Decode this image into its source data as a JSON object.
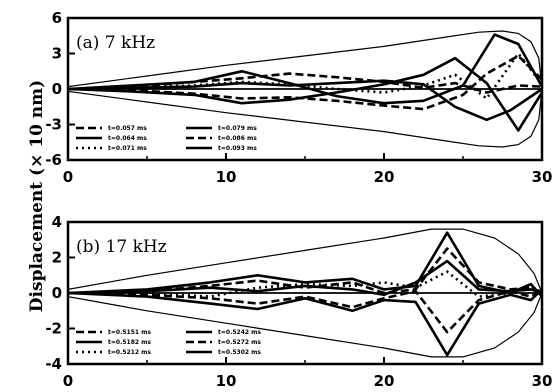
{
  "figure": {
    "ylabel": "Displacement (× 10 nm)"
  },
  "chart_data": [
    {
      "type": "line",
      "panel_label": "(a)  7 kHz",
      "xlim": [
        0,
        30
      ],
      "ylim": [
        -6,
        6
      ],
      "x_ticks": [
        0,
        10,
        20,
        30
      ],
      "y_ticks": [
        -6,
        -3,
        0,
        3,
        6
      ],
      "x_tick_labels": [
        "0",
        "10",
        "20",
        "30"
      ],
      "y_tick_labels": [
        "-6",
        "-3",
        "0",
        "3",
        "6"
      ],
      "grid": false,
      "legend_position": "bottom-left",
      "legend": [
        "t=0.057 ms",
        "t=0.064 ms",
        "t=0.071 ms",
        "t=0.079 ms",
        "t=0.086 ms",
        "t=0.093 ms"
      ],
      "envelope": {
        "x": [
          0,
          5,
          10,
          15,
          20,
          24,
          26,
          27.5,
          28.5,
          29.3,
          29.8,
          30
        ],
        "upper": [
          0.2,
          1.1,
          2.0,
          2.8,
          3.6,
          4.4,
          4.8,
          4.9,
          4.7,
          4.0,
          2.6,
          0
        ],
        "lower": [
          -0.2,
          -1.1,
          -2.0,
          -2.8,
          -3.6,
          -4.4,
          -4.8,
          -4.9,
          -4.7,
          -4.0,
          -2.6,
          0
        ]
      },
      "series": [
        {
          "dash": "solid",
          "x": [
            0,
            4,
            8,
            11,
            14,
            17,
            20,
            22.5,
            25,
            27,
            28.5,
            30
          ],
          "y": [
            0,
            0.3,
            0.6,
            1.5,
            0.5,
            -0.6,
            -1.2,
            -1.0,
            0.3,
            4.6,
            3.8,
            0.2
          ]
        },
        {
          "dash": "solid",
          "x": [
            0,
            4,
            8,
            11,
            14,
            17,
            20,
            22.5,
            24.5,
            26.5,
            28.5,
            30
          ],
          "y": [
            0,
            -0.2,
            -0.5,
            -1.2,
            -0.9,
            -0.3,
            0.4,
            1.2,
            2.6,
            0.5,
            -3.5,
            -0.3
          ]
        },
        {
          "dash": "solid",
          "x": [
            0,
            4,
            8,
            11,
            14,
            17,
            20,
            22.5,
            24.5,
            26.5,
            28,
            30
          ],
          "y": [
            0,
            0.1,
            0.2,
            0.5,
            0.3,
            0.5,
            0.7,
            0.4,
            -1.5,
            -2.6,
            -1.8,
            0
          ]
        },
        {
          "dash": "dash",
          "x": [
            0,
            4,
            8,
            11,
            14,
            17,
            20,
            22.5,
            25,
            26.5,
            28.5,
            30
          ],
          "y": [
            0,
            -0.1,
            -0.4,
            -0.8,
            -0.7,
            -1.0,
            -1.4,
            -1.7,
            -0.5,
            1.3,
            2.8,
            0.8
          ]
        },
        {
          "dash": "dash",
          "x": [
            0,
            4,
            8,
            11,
            14,
            17,
            20,
            22.5,
            24.5,
            26.5,
            28.5,
            30
          ],
          "y": [
            0,
            0.2,
            0.6,
            0.9,
            1.3,
            1.0,
            0.6,
            0.1,
            0.5,
            -0.3,
            0.3,
            0.2
          ]
        },
        {
          "dash": "dot",
          "x": [
            0,
            4,
            8,
            11,
            14,
            17,
            20,
            22.5,
            24.5,
            26.5,
            28.5,
            30
          ],
          "y": [
            0,
            0.1,
            0.3,
            0.6,
            0.4,
            0.0,
            -0.3,
            0.3,
            1.2,
            -0.8,
            3.0,
            0.4
          ]
        }
      ]
    },
    {
      "type": "line",
      "panel_label": "(b)  17 kHz",
      "xlim": [
        0,
        30
      ],
      "ylim": [
        -4,
        4
      ],
      "x_ticks": [
        0,
        10,
        20,
        30
      ],
      "y_ticks": [
        -4,
        -2,
        0,
        2,
        4
      ],
      "x_tick_labels": [
        "0",
        "10",
        "20",
        "30"
      ],
      "y_tick_labels": [
        "-4",
        "-2",
        "0",
        "2",
        "4"
      ],
      "grid": false,
      "legend_position": "bottom-left",
      "legend": [
        "t=0.5151 ms",
        "t=0.5182 ms",
        "t=0.5212 ms",
        "t=0.5242 ms",
        "t=0.5272 ms",
        "t=0.5302 ms"
      ],
      "envelope": {
        "x": [
          0,
          5,
          10,
          15,
          20,
          23,
          25,
          27,
          28.5,
          29.5,
          30
        ],
        "upper": [
          0.2,
          1.0,
          1.7,
          2.4,
          3.1,
          3.6,
          3.6,
          3.1,
          2.2,
          1.1,
          0
        ],
        "lower": [
          -0.2,
          -1.0,
          -1.7,
          -2.4,
          -3.1,
          -3.6,
          -3.6,
          -3.1,
          -2.2,
          -1.1,
          0
        ]
      },
      "series": [
        {
          "dash": "solid",
          "x": [
            0,
            5,
            9,
            12,
            15,
            18,
            20,
            22,
            24,
            26,
            28,
            29.3,
            30
          ],
          "y": [
            0,
            0.2,
            0.6,
            1.0,
            0.6,
            0.8,
            0.2,
            0.4,
            3.4,
            0.4,
            0.0,
            0.5,
            -0.2
          ]
        },
        {
          "dash": "solid",
          "x": [
            0,
            5,
            9,
            12,
            15,
            18,
            20,
            22,
            24,
            26,
            28,
            29.3,
            30
          ],
          "y": [
            0,
            -0.2,
            -0.6,
            -0.9,
            -0.3,
            -1.0,
            -0.4,
            -0.5,
            -3.5,
            -0.6,
            -0.1,
            -0.4,
            0.2
          ]
        },
        {
          "dash": "solid",
          "x": [
            0,
            5,
            9,
            12,
            15,
            18,
            20,
            22,
            24,
            26,
            28,
            29.3,
            30
          ],
          "y": [
            0,
            0.1,
            0.3,
            0.1,
            0.4,
            0.2,
            -0.1,
            0.6,
            1.8,
            0.2,
            0.1,
            0.2,
            0
          ]
        },
        {
          "dash": "dash",
          "x": [
            0,
            5,
            9,
            12,
            15,
            18,
            20,
            22,
            24,
            26,
            28,
            29.3,
            30
          ],
          "y": [
            0,
            -0.1,
            -0.3,
            -0.6,
            -0.2,
            -0.8,
            -0.3,
            0.1,
            -2.2,
            -0.4,
            0.1,
            -0.2,
            0.1
          ]
        },
        {
          "dash": "dash",
          "x": [
            0,
            5,
            9,
            12,
            15,
            18,
            20,
            22,
            24,
            26,
            28,
            29.3,
            30
          ],
          "y": [
            0,
            0.1,
            0.4,
            0.7,
            0.3,
            0.6,
            0.0,
            0.2,
            2.5,
            0.6,
            0.2,
            0.3,
            0
          ]
        },
        {
          "dash": "dot",
          "x": [
            0,
            5,
            9,
            12,
            15,
            18,
            20,
            22,
            24,
            26,
            28,
            29.3,
            30
          ],
          "y": [
            0,
            0.0,
            -0.2,
            0.3,
            0.5,
            0.4,
            0.6,
            0.3,
            1.2,
            -0.2,
            0.0,
            0.4,
            0
          ]
        }
      ]
    }
  ]
}
